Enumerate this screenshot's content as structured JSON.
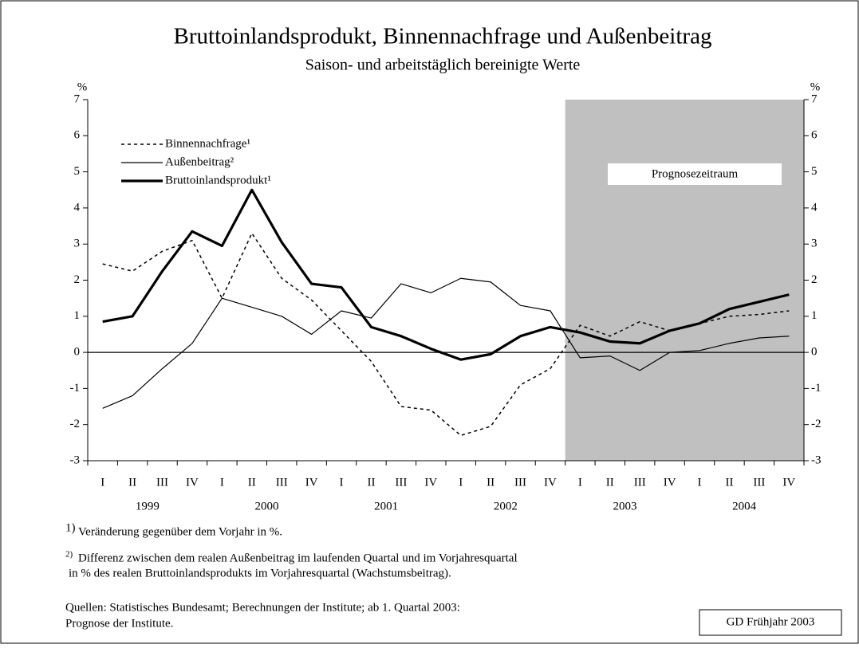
{
  "chart_data": {
    "type": "line",
    "title": "Bruttoinlandsprodukt, Binnennachfrage und Außenbeitrag",
    "subtitle": "Saison- und arbeitstäglich bereinigte Werte",
    "ylabel": "%",
    "y2label": "%",
    "categories": [
      "I",
      "II",
      "III",
      "IV",
      "I",
      "II",
      "III",
      "IV",
      "I",
      "II",
      "III",
      "IV",
      "I",
      "II",
      "III",
      "IV",
      "I",
      "II",
      "III",
      "IV",
      "I",
      "II",
      "III",
      "IV"
    ],
    "year_labels": [
      "1999",
      "2000",
      "2001",
      "2002",
      "2003",
      "2004"
    ],
    "series": [
      {
        "name": "Binnennachfrage¹",
        "color": "#000000",
        "style": "dotted",
        "width": 1.5,
        "values": [
          2.45,
          2.25,
          2.8,
          3.1,
          1.5,
          3.3,
          2.05,
          1.45,
          0.6,
          -0.25,
          -1.5,
          -1.6,
          -2.3,
          -2.05,
          -0.9,
          -0.45,
          0.75,
          0.45,
          0.85,
          0.6,
          0.8,
          1.0,
          1.05,
          1.15
        ]
      },
      {
        "name": "Außenbeitrag²",
        "color": "#000000",
        "style": "solid",
        "width": 1.2,
        "values": [
          -1.55,
          -1.2,
          -0.45,
          0.25,
          1.5,
          1.25,
          1.0,
          0.5,
          1.15,
          0.95,
          1.9,
          1.65,
          2.05,
          1.95,
          1.3,
          1.15,
          -0.15,
          -0.1,
          -0.5,
          0.0,
          0.05,
          0.25,
          0.4,
          0.45
        ]
      },
      {
        "name": "Bruttoinlandsprodukt¹",
        "color": "#000000",
        "style": "solid",
        "width": 3.2,
        "values": [
          0.85,
          1.0,
          2.25,
          3.35,
          2.95,
          4.5,
          3.05,
          1.9,
          1.8,
          0.7,
          0.45,
          0.1,
          -0.2,
          -0.05,
          0.45,
          0.7,
          0.55,
          0.3,
          0.25,
          0.6,
          0.8,
          1.2,
          1.4,
          1.6
        ]
      }
    ],
    "ylim": [
      -3,
      7
    ],
    "yticks": [
      -3,
      -2,
      -1,
      0,
      1,
      2,
      3,
      4,
      5,
      6,
      7
    ],
    "y2lim": [
      -3,
      7
    ],
    "y2ticks": [
      -3,
      -2,
      -1,
      0,
      1,
      2,
      3,
      4,
      5,
      6,
      7
    ],
    "shading": {
      "label": "Prognosezeitraum",
      "color": "#c0c0c0",
      "start": 16
    }
  },
  "footnotes": [
    {
      "marker": "1)",
      "text": "Veränderung gegenüber dem Vorjahr in %."
    },
    {
      "marker": "2)",
      "text": "Differenz zwischen dem realen Außenbeitrag im laufenden Quartal und im Vorjahresquartal",
      "text2": "in % des realen Bruttoinlandsprodukts im Vorjahresquartal (Wachstumsbeitrag)."
    }
  ],
  "sources": [
    "Quellen: Statistisches Bundesamt; Berechnungen der Institute; ab 1. Quartal 2003:",
    "Prognose der Institute."
  ],
  "badge": "GD Frühjahr 2003"
}
